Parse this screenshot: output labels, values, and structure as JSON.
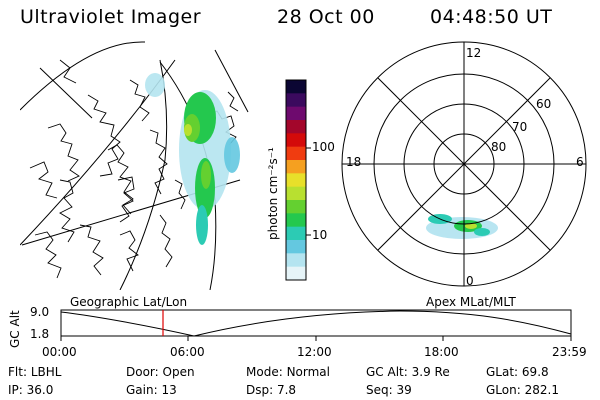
{
  "header": {
    "title": "Ultraviolet Imager",
    "date": "28 Oct 00",
    "time": "04:48:50 UT"
  },
  "colorbar": {
    "unit_label": "photon cm⁻²s⁻¹",
    "tick_labels": [
      "100",
      "10"
    ],
    "colors": [
      "#0b0633",
      "#3b0a5e",
      "#6e0a6e",
      "#a3062b",
      "#d40a0a",
      "#f03c10",
      "#f5a020",
      "#e8e02a",
      "#b8e030",
      "#64d030",
      "#24c84e",
      "#2ccbb4",
      "#64c8e0",
      "#b4e4f0",
      "#e6f4f8"
    ]
  },
  "geo_panel": {
    "caption": "Geographic Lat/Lon"
  },
  "polar_panel": {
    "caption": "Apex MLat/MLT",
    "mlt_labels": [
      "12",
      "18",
      "6",
      "0"
    ],
    "lat_labels": [
      "60",
      "70",
      "80"
    ]
  },
  "altitude_plot": {
    "ylabel": "GC Alt",
    "ytick_labels": [
      "9.0",
      "1.8"
    ],
    "xtick_labels": [
      "00:00",
      "06:00",
      "12:00",
      "18:00",
      "23:59"
    ],
    "marker_color": "#e00000"
  },
  "status": {
    "row1": [
      {
        "key": "Flt:",
        "value": "LBHL"
      },
      {
        "key": "Door:",
        "value": "Open"
      },
      {
        "key": "Mode:",
        "value": "Normal"
      },
      {
        "key": "GC Alt:",
        "value": "3.9 Re"
      },
      {
        "key": "GLat:",
        "value": "69.8"
      }
    ],
    "row2": [
      {
        "key": "IP:",
        "value": "36.0"
      },
      {
        "key": "Gain:",
        "value": "13"
      },
      {
        "key": "Dsp:",
        "value": "7.8"
      },
      {
        "key": "Seq:",
        "value": "39"
      },
      {
        "key": "GLon:",
        "value": "282.1"
      }
    ]
  }
}
